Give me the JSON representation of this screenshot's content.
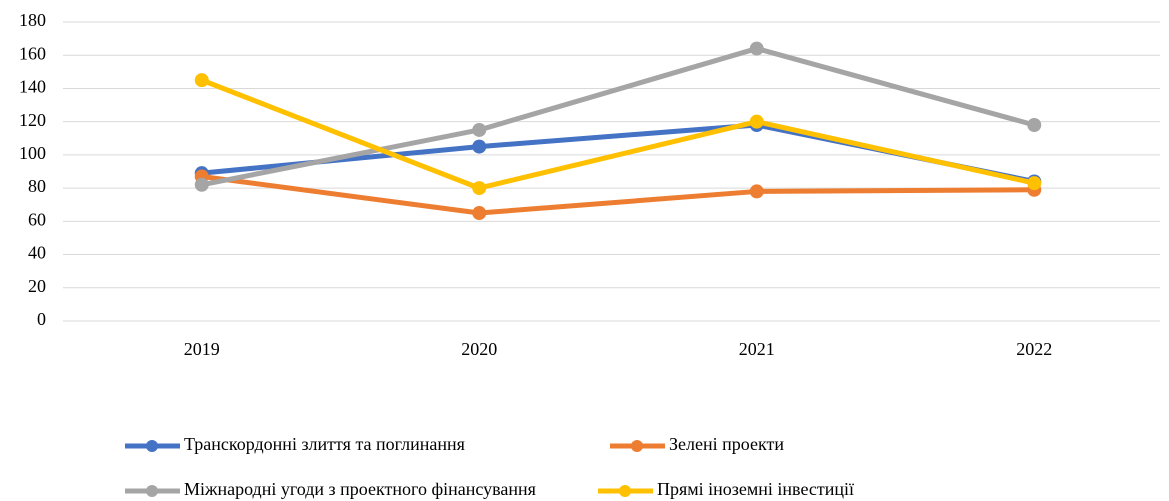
{
  "chart_data": {
    "type": "line",
    "categories": [
      "2019",
      "2020",
      "2021",
      "2022"
    ],
    "series": [
      {
        "name": "Транскордонні злиття та поглинання",
        "color": "#4472c4",
        "values": [
          89,
          105,
          118,
          84
        ]
      },
      {
        "name": "Зелені проекти",
        "color": "#ed7d31",
        "values": [
          87,
          65,
          78,
          79
        ]
      },
      {
        "name": "Міжнародні угоди з проектного фінансування",
        "color": "#a5a5a5",
        "values": [
          82,
          115,
          164,
          118
        ]
      },
      {
        "name": "Прямі іноземні інвестиції",
        "color": "#ffc000",
        "values": [
          145,
          80,
          120,
          83
        ]
      }
    ],
    "ylim": [
      0,
      180
    ],
    "yticks": [
      0,
      20,
      40,
      60,
      80,
      100,
      120,
      140,
      160,
      180
    ],
    "grid": true,
    "legend": "bottom"
  }
}
